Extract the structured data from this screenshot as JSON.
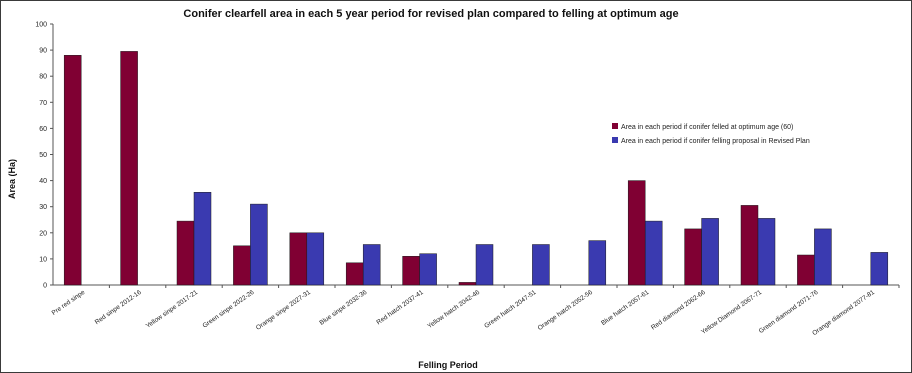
{
  "chart_data": {
    "type": "bar",
    "title": "Conifer clearfell area  in each 5 year period for revised plan compared to felling at optimum age",
    "xlabel": "Felling Period",
    "ylabel": "Area (Ha)",
    "ylim": [
      0,
      100
    ],
    "yticks": [
      0,
      10,
      20,
      30,
      40,
      50,
      60,
      70,
      80,
      90,
      100
    ],
    "grid": false,
    "legend_position": "right",
    "categories": [
      "Pre red sinpe",
      "Red sinpe 2012-16",
      "Yellow sinpe 2017-21",
      "Green sinpe 2022-26",
      "Orange sinpe 2027-31",
      "Blue sinpe 2032-36",
      "Red hatch 2037-41",
      "Yellow hatch 2042-46",
      "Green hatch 2047-51",
      "Orange hatch 2052-56",
      "Blue hatch 2057-61",
      "Red diamond 2062-66",
      "Yellow Diamond 2067-71",
      "Green diamond 2071-76",
      "Orange diamond 2077-81"
    ],
    "series": [
      {
        "name": "Area in each period if conifer felled at optimum age (60)",
        "color": "#800033",
        "values": [
          88,
          89.5,
          24.5,
          15,
          20,
          8.5,
          11,
          1,
          null,
          null,
          40,
          21.5,
          30.5,
          11.5,
          null
        ]
      },
      {
        "name": "Area in each period if conifer felling proposal in Revised Plan",
        "color": "#3a3ab0",
        "values": [
          null,
          null,
          35.5,
          31,
          20,
          15.5,
          12,
          15.5,
          15.5,
          17,
          24.5,
          25.5,
          25.5,
          21.5,
          12.5
        ]
      }
    ]
  }
}
